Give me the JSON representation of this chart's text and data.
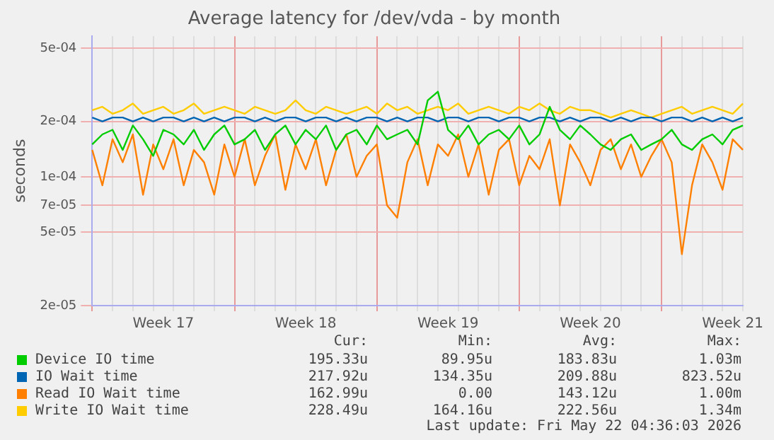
{
  "chart_data": {
    "type": "line",
    "title": "Average latency for /dev/vda - by month",
    "ylabel": "seconds",
    "log": "y",
    "grid": true,
    "legend": "bottom",
    "marker": "none",
    "line_style": "solid",
    "categories": [
      null,
      null,
      null,
      null,
      null,
      null,
      null,
      "Week 17",
      null,
      null,
      null,
      null,
      null,
      null,
      null,
      null,
      null,
      null,
      null,
      null,
      null,
      "Week 18",
      null,
      null,
      null,
      null,
      null,
      null,
      null,
      null,
      null,
      null,
      null,
      null,
      null,
      "Week 19",
      null,
      null,
      null,
      null,
      null,
      null,
      null,
      null,
      null,
      null,
      null,
      null,
      null,
      "Week 20",
      null,
      null,
      null,
      null,
      null,
      null,
      null,
      null,
      null,
      null,
      null,
      null,
      null,
      "Week 21",
      null
    ],
    "ylim": [
      2e-05,
      0.00058
    ],
    "yticks": [
      {
        "value": 2e-05,
        "label": "2e-05"
      },
      {
        "value": 5e-05,
        "label": "5e-05"
      },
      {
        "value": 7e-05,
        "label": "7e-05"
      },
      {
        "value": 0.0001,
        "label": "1e-04"
      },
      {
        "value": 0.0002,
        "label": "2e-04"
      },
      {
        "value": 0.0005,
        "label": "5e-04"
      }
    ],
    "series": [
      {
        "name": "Device IO time",
        "color": "#00cc00",
        "values": [
          0.00015,
          0.00017,
          0.00018,
          0.00014,
          0.00019,
          0.00016,
          0.00013,
          0.00018,
          0.00017,
          0.00015,
          0.00018,
          0.00014,
          0.00017,
          0.00019,
          0.00015,
          0.00016,
          0.00018,
          0.00014,
          0.00017,
          0.00019,
          0.00015,
          0.00018,
          0.00016,
          0.00019,
          0.00014,
          0.00017,
          0.00018,
          0.00015,
          0.00019,
          0.00016,
          0.00017,
          0.00018,
          0.00015,
          0.00026,
          0.00029,
          0.00018,
          0.00016,
          0.00019,
          0.00015,
          0.00017,
          0.00018,
          0.00016,
          0.00019,
          0.00015,
          0.00017,
          0.00024,
          0.00018,
          0.00016,
          0.00019,
          0.00017,
          0.00015,
          0.00014,
          0.00016,
          0.00017,
          0.00014,
          0.00015,
          0.00016,
          0.00018,
          0.00015,
          0.00014,
          0.00016,
          0.00017,
          0.00015,
          0.00018,
          0.00019
        ]
      },
      {
        "name": "IO Wait time",
        "color": "#0066b3",
        "values": [
          0.00021,
          0.0002,
          0.00021,
          0.00021,
          0.0002,
          0.00021,
          0.0002,
          0.00021,
          0.00021,
          0.0002,
          0.00021,
          0.0002,
          0.00021,
          0.0002,
          0.00021,
          0.00021,
          0.0002,
          0.00021,
          0.0002,
          0.00021,
          0.00021,
          0.0002,
          0.00021,
          0.00021,
          0.0002,
          0.00021,
          0.0002,
          0.00021,
          0.00021,
          0.0002,
          0.00021,
          0.0002,
          0.00021,
          0.00021,
          0.0002,
          0.00021,
          0.00021,
          0.0002,
          0.00021,
          0.00021,
          0.0002,
          0.00021,
          0.00021,
          0.0002,
          0.00021,
          0.00021,
          0.0002,
          0.00021,
          0.0002,
          0.00021,
          0.00021,
          0.0002,
          0.00021,
          0.0002,
          0.00021,
          0.00021,
          0.0002,
          0.00021,
          0.00021,
          0.0002,
          0.00021,
          0.0002,
          0.00021,
          0.0002,
          0.00021
        ]
      },
      {
        "name": "Read IO Wait time",
        "color": "#ff8000",
        "values": [
          0.00014,
          9e-05,
          0.00016,
          0.00012,
          0.00017,
          8e-05,
          0.00015,
          0.00011,
          0.00016,
          9e-05,
          0.00014,
          0.00012,
          8e-05,
          0.00015,
          0.0001,
          0.00016,
          9e-05,
          0.00013,
          0.00017,
          8.5e-05,
          0.00015,
          0.00011,
          0.00016,
          9e-05,
          0.00014,
          0.00017,
          0.0001,
          0.00013,
          0.00015,
          7e-05,
          6e-05,
          0.00012,
          0.00016,
          9e-05,
          0.00015,
          0.00013,
          0.00017,
          0.0001,
          0.00015,
          8e-05,
          0.00014,
          0.00016,
          9e-05,
          0.00013,
          0.00011,
          0.00016,
          7e-05,
          0.00015,
          0.00012,
          9e-05,
          0.00014,
          0.00016,
          0.00011,
          0.00015,
          0.0001,
          0.00013,
          0.00016,
          0.00012,
          3.8e-05,
          9e-05,
          0.00015,
          0.00012,
          8.5e-05,
          0.00016,
          0.00014
        ]
      },
      {
        "name": "Write IO Wait time",
        "color": "#ffcc00",
        "values": [
          0.00023,
          0.00024,
          0.00022,
          0.00023,
          0.00025,
          0.00022,
          0.00023,
          0.00024,
          0.00022,
          0.00023,
          0.00025,
          0.00022,
          0.00023,
          0.00024,
          0.00023,
          0.00022,
          0.00024,
          0.00023,
          0.00022,
          0.00023,
          0.00026,
          0.00023,
          0.00022,
          0.00024,
          0.00023,
          0.00022,
          0.00023,
          0.00024,
          0.00022,
          0.00025,
          0.00023,
          0.00024,
          0.00022,
          0.00023,
          0.00024,
          0.00023,
          0.00025,
          0.00022,
          0.00023,
          0.00024,
          0.00023,
          0.00022,
          0.00024,
          0.00023,
          0.00025,
          0.00023,
          0.00022,
          0.00024,
          0.00023,
          0.00023,
          0.00022,
          0.00021,
          0.00022,
          0.00023,
          0.00022,
          0.00021,
          0.00022,
          0.00023,
          0.00024,
          0.00022,
          0.00023,
          0.00024,
          0.00023,
          0.00022,
          0.00025
        ]
      }
    ],
    "annotations": [
      "Cur:",
      "Min:",
      "Avg:",
      "Max:",
      "195.33u",
      "89.95u",
      "183.83u",
      "1.03m",
      "217.92u",
      "134.35u",
      "209.88u",
      "823.52u",
      "162.99u",
      "0.00",
      "143.12u",
      "1.00m",
      "228.49u",
      "164.16u",
      "222.56u",
      "1.34m",
      "Last update: Fri May 22 04:36:03 2026"
    ]
  }
}
